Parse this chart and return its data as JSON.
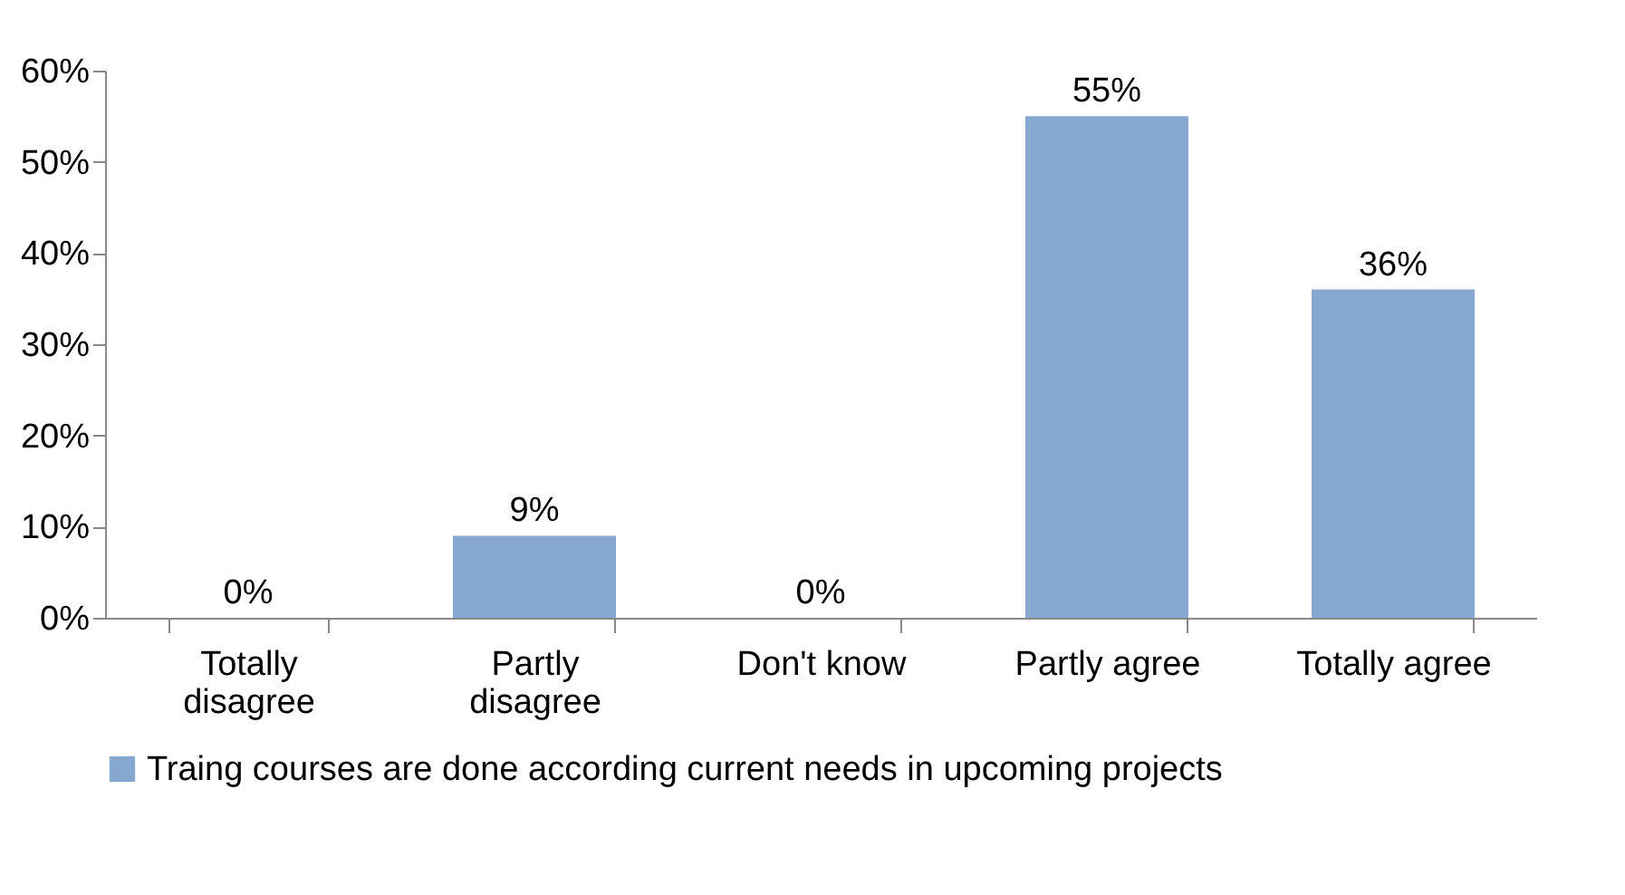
{
  "chart_data": {
    "type": "bar",
    "categories": [
      "Totally disagree",
      "Partly disagree",
      "Don't know",
      "Partly agree",
      "Totally agree"
    ],
    "series": [
      {
        "name": "Traing courses are done according current needs in upcoming projects",
        "color": "#86a8d0",
        "values": [
          0,
          9,
          0,
          55,
          36
        ],
        "value_labels": [
          "0%",
          "9%",
          "0%",
          "55%",
          "36%"
        ]
      }
    ],
    "ylim": [
      0,
      60
    ],
    "yticks": [
      {
        "value": 0,
        "label": "0%"
      },
      {
        "value": 10,
        "label": "10%"
      },
      {
        "value": 20,
        "label": "20%"
      },
      {
        "value": 30,
        "label": "30%"
      },
      {
        "value": 40,
        "label": "40%"
      },
      {
        "value": 50,
        "label": "50%"
      },
      {
        "value": 60,
        "label": "60%"
      }
    ],
    "grid": false,
    "legend": "bottom"
  }
}
